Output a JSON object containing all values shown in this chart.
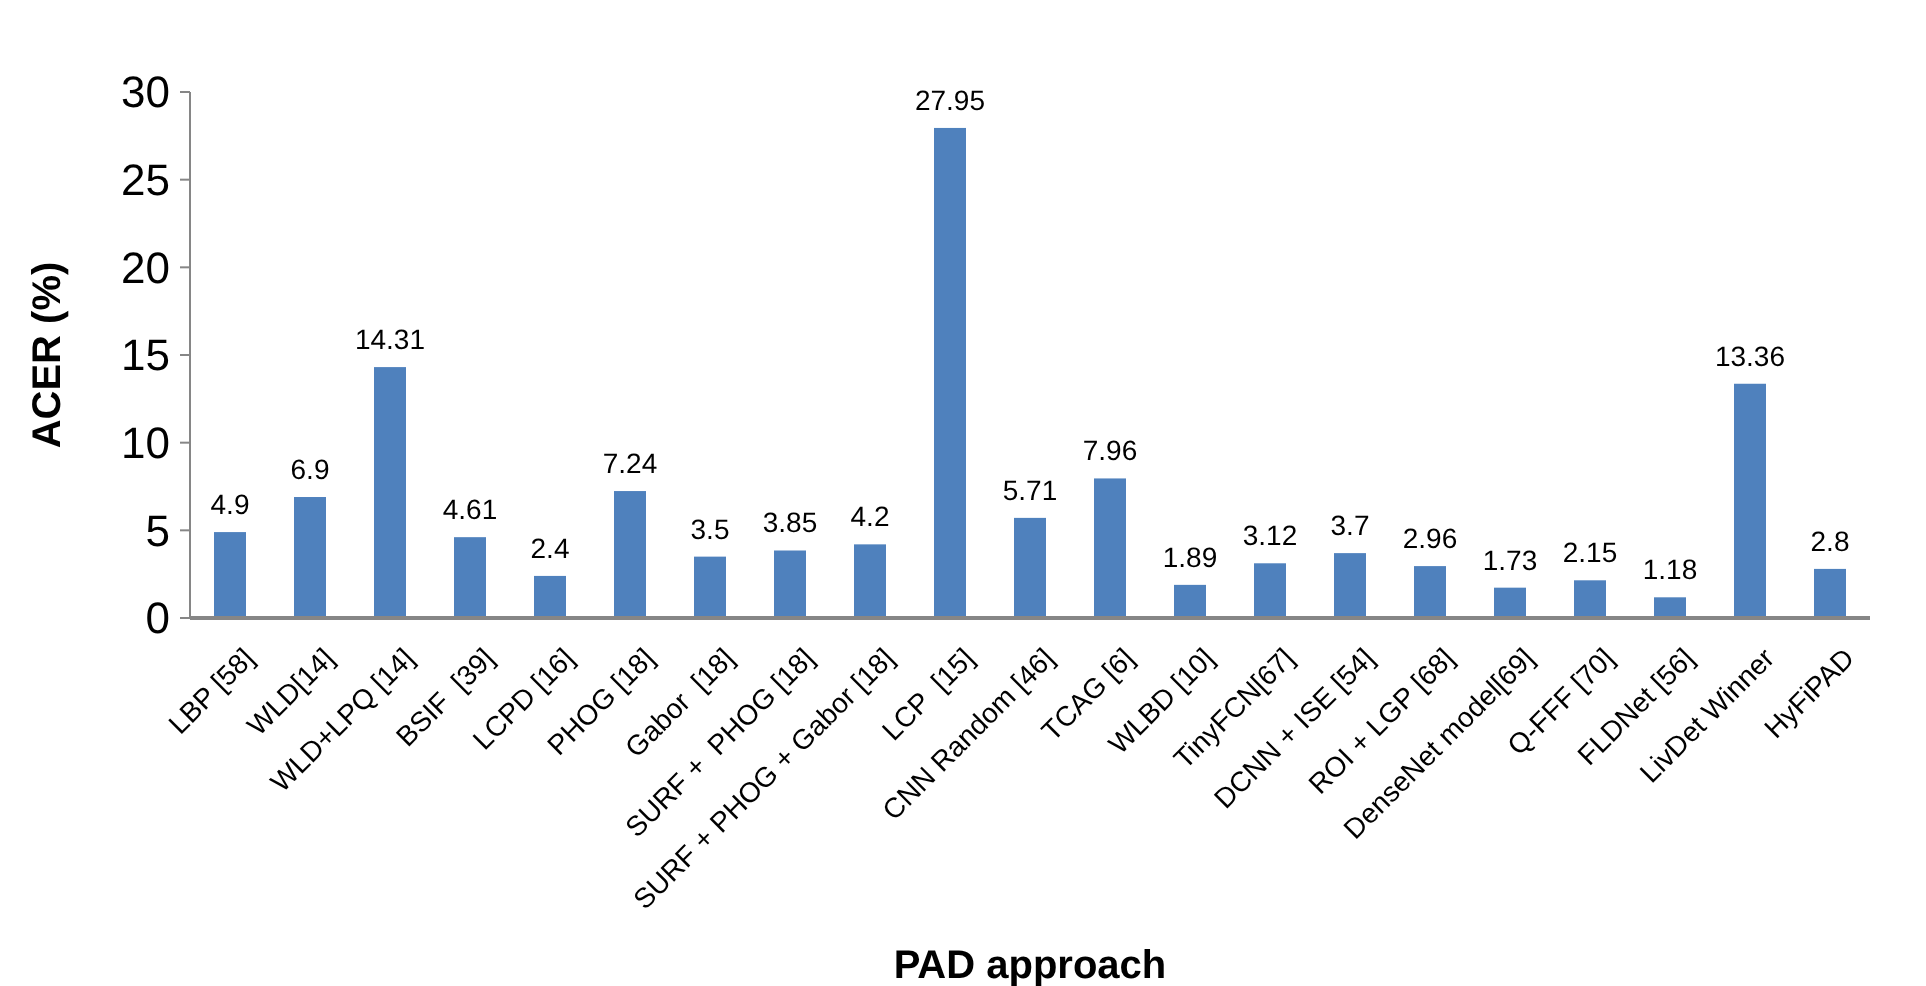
{
  "chart_data": {
    "type": "bar",
    "xlabel": "PAD approach",
    "ylabel": "ACER (%)",
    "categories": [
      "LBP [58]",
      "WLD[14]",
      "WLD+LPQ [14]",
      "BSIF  [39]",
      "LCPD [16]",
      "PHOG [18]",
      "Gabor  [18]",
      "SURF +  PHOG [18]",
      "SURF + PHOG + Gabor [18]",
      "LCP  [15]",
      "CNN Random [46]",
      "TCAG [6]",
      "WLBD [10]",
      "TinyFCN[67]",
      "DCNN + ISE [54]",
      "ROI + LGP [68]",
      "DenseNet model[69]",
      "Q-FFF [70]",
      "FLDNet [56]",
      "LivDet Winner",
      "HyFiPAD"
    ],
    "values": [
      4.9,
      6.9,
      14.31,
      4.61,
      2.4,
      7.24,
      3.5,
      3.85,
      4.2,
      27.95,
      5.71,
      7.96,
      1.89,
      3.12,
      3.7,
      2.96,
      1.73,
      2.15,
      1.18,
      13.36,
      2.8
    ],
    "color": "#4f81bd",
    "ylim": [
      0,
      30
    ],
    "yticks": [
      0,
      5,
      10,
      15,
      20,
      25,
      30
    ],
    "data_labels": true,
    "grid": false
  }
}
